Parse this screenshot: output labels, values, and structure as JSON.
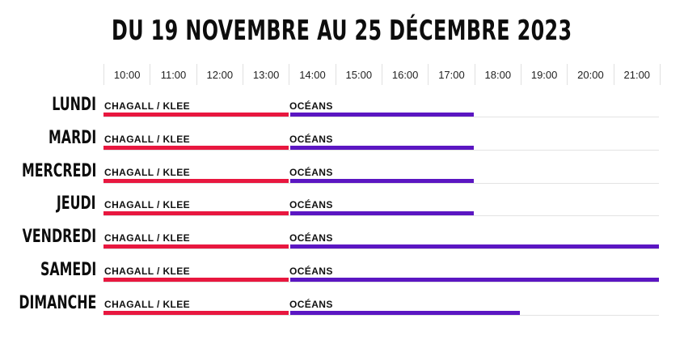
{
  "title": "DU 19 NOVEMBRE AU 25 DÉCEMBRE 2023",
  "hours": [
    "10:00",
    "11:00",
    "12:00",
    "13:00",
    "14:00",
    "15:00",
    "16:00",
    "17:00",
    "18:00",
    "19:00",
    "20:00",
    "21:00"
  ],
  "colors": {
    "chagall_klee": "#e8173f",
    "oceans": "#5b16c2",
    "grid": "#e0e0e0"
  },
  "schedule": [
    {
      "day": "LUNDI",
      "events": [
        {
          "label": "CHAGALL / KLEE",
          "start": "10:00",
          "end": "14:00",
          "color_key": "chagall_klee"
        },
        {
          "label": "OCÉANS",
          "start": "14:00",
          "end": "18:00",
          "color_key": "oceans"
        }
      ]
    },
    {
      "day": "MARDI",
      "events": [
        {
          "label": "CHAGALL / KLEE",
          "start": "10:00",
          "end": "14:00",
          "color_key": "chagall_klee"
        },
        {
          "label": "OCÉANS",
          "start": "14:00",
          "end": "18:00",
          "color_key": "oceans"
        }
      ]
    },
    {
      "day": "MERCREDI",
      "events": [
        {
          "label": "CHAGALL / KLEE",
          "start": "10:00",
          "end": "14:00",
          "color_key": "chagall_klee"
        },
        {
          "label": "OCÉANS",
          "start": "14:00",
          "end": "18:00",
          "color_key": "oceans"
        }
      ]
    },
    {
      "day": "JEUDI",
      "events": [
        {
          "label": "CHAGALL / KLEE",
          "start": "10:00",
          "end": "14:00",
          "color_key": "chagall_klee"
        },
        {
          "label": "OCÉANS",
          "start": "14:00",
          "end": "18:00",
          "color_key": "oceans"
        }
      ]
    },
    {
      "day": "VENDREDI",
      "events": [
        {
          "label": "CHAGALL / KLEE",
          "start": "10:00",
          "end": "14:00",
          "color_key": "chagall_klee"
        },
        {
          "label": "OCÉANS",
          "start": "14:00",
          "end": "22:00",
          "color_key": "oceans"
        }
      ]
    },
    {
      "day": "SAMEDI",
      "events": [
        {
          "label": "CHAGALL / KLEE",
          "start": "10:00",
          "end": "14:00",
          "color_key": "chagall_klee"
        },
        {
          "label": "OCÉANS",
          "start": "14:00",
          "end": "22:00",
          "color_key": "oceans"
        }
      ]
    },
    {
      "day": "DIMANCHE",
      "events": [
        {
          "label": "CHAGALL / KLEE",
          "start": "10:00",
          "end": "14:00",
          "color_key": "chagall_klee"
        },
        {
          "label": "OCÉANS",
          "start": "14:00",
          "end": "19:00",
          "color_key": "oceans"
        }
      ]
    }
  ]
}
